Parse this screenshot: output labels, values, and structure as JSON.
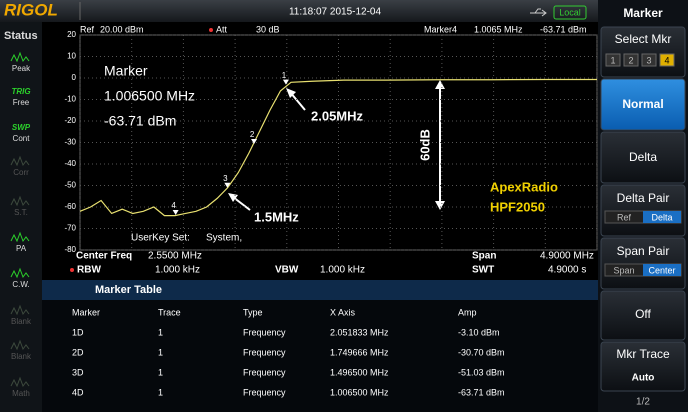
{
  "header": {
    "brand": "RIGOL",
    "datetime": "11:18:07 2015-12-04",
    "mode": "Local"
  },
  "status": {
    "title": "Status",
    "items": [
      {
        "label": "Peak"
      },
      {
        "top": "TRIG",
        "label": "Free"
      },
      {
        "top": "SWP",
        "label": "Cont"
      },
      {
        "label": "Corr"
      },
      {
        "label": "S.T."
      },
      {
        "label": "PA"
      },
      {
        "label": "C.W."
      },
      {
        "label": "Blank"
      },
      {
        "label": "Blank"
      },
      {
        "label": "Math"
      }
    ]
  },
  "info": {
    "ref_label": "Ref",
    "ref_value": "20.00 dBm",
    "att_label": "Att",
    "att_value": "30 dB",
    "marker_label": "Marker4",
    "marker_freq": "1.0065 MHz",
    "marker_amp": "-63.71 dBm"
  },
  "chart_data": {
    "type": "line",
    "xlim": [
      0.1,
      5.0
    ],
    "xticks": [
      0.1,
      0.59,
      1.08,
      1.57,
      2.06,
      2.55,
      3.04,
      3.53,
      4.02,
      4.51,
      5.0
    ],
    "ylim": [
      -80,
      20
    ],
    "yticks": [
      20,
      10,
      0,
      -10,
      -20,
      -30,
      -40,
      -50,
      -60,
      -70,
      -80
    ],
    "grid": true,
    "x": [
      0.1,
      0.2,
      0.3,
      0.4,
      0.5,
      0.6,
      0.7,
      0.8,
      0.9,
      1.0,
      1.1,
      1.2,
      1.3,
      1.4,
      1.5,
      1.6,
      1.7,
      1.8,
      1.9,
      2.0,
      2.1,
      2.3,
      2.6,
      3.0,
      3.5,
      4.0,
      4.5,
      5.0
    ],
    "series": [
      {
        "color": "#e8e070",
        "values": [
          -62,
          -60,
          -57,
          -63,
          -61,
          -63,
          -62,
          -60,
          -64,
          -64,
          -63,
          -62,
          -60,
          -56,
          -51,
          -44,
          -35,
          -25,
          -15,
          -6,
          -2,
          -1.5,
          -1,
          -1,
          -0.8,
          -0.8,
          -0.7,
          -0.7
        ]
      }
    ],
    "markers": [
      {
        "label": "1",
        "x": 2.051833,
        "y": -3.1
      },
      {
        "label": "2",
        "x": 1.749666,
        "y": -30.7
      },
      {
        "label": "3",
        "x": 1.4965,
        "y": -51.03
      },
      {
        "label": "4",
        "x": 1.0065,
        "y": -63.71
      }
    ],
    "overlay": {
      "title": "Marker",
      "freq": "1.006500 MHz",
      "amp": "-63.71 dBm"
    },
    "annotations": [
      "2.05MHz",
      "1.5MHz",
      "60dB",
      "ApexRadio",
      "HPF2050"
    ],
    "userkey": {
      "label": "UserKey Set:",
      "value": "System,"
    }
  },
  "settings": {
    "center_label": "Center Freq",
    "center_value": "2.5500 MHz",
    "span_label": "Span",
    "span_value": "4.9000 MHz",
    "rbw_label": "RBW",
    "rbw_value": "1.000 kHz",
    "vbw_label": "VBW",
    "vbw_value": "1.000 kHz",
    "swt_label": "SWT",
    "swt_value": "4.9000 s"
  },
  "marker_table": {
    "title": "Marker Table",
    "columns": [
      "Marker",
      "Trace",
      "Type",
      "X Axis",
      "Amp"
    ],
    "rows": [
      [
        "1D",
        "1",
        "Frequency",
        "2.051833 MHz",
        "-3.10 dBm"
      ],
      [
        "2D",
        "1",
        "Frequency",
        "1.749666 MHz",
        "-30.70 dBm"
      ],
      [
        "3D",
        "1",
        "Frequency",
        "1.496500 MHz",
        "-51.03 dBm"
      ],
      [
        "4D",
        "1",
        "Frequency",
        "1.006500 MHz",
        "-63.71 dBm"
      ]
    ]
  },
  "menu": {
    "title": "Marker",
    "select": {
      "label": "Select Mkr",
      "options": [
        "1",
        "2",
        "3",
        "4"
      ]
    },
    "normal": "Normal",
    "delta": "Delta",
    "delta_pair": {
      "label": "Delta Pair",
      "options": [
        "Ref",
        "Delta"
      ]
    },
    "span_pair": {
      "label": "Span Pair",
      "options": [
        "Span",
        "Center"
      ]
    },
    "off": "Off",
    "mkr_trace": {
      "label": "Mkr Trace",
      "value": "Auto"
    },
    "page": "1/2"
  }
}
